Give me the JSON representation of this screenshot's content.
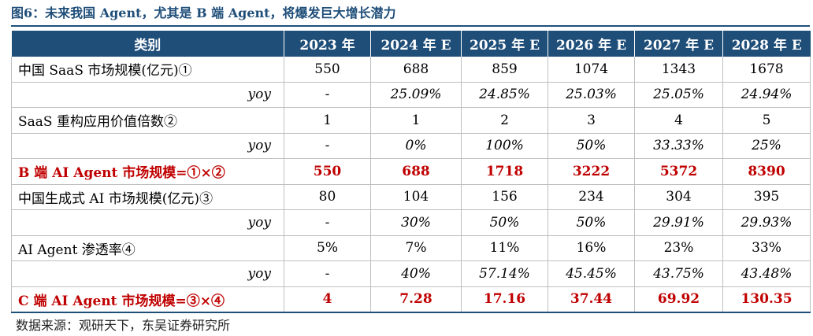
{
  "title": "图6：未来我国 Agent，尤其是 B 端 Agent，将爆发巨大增长潜力",
  "table": {
    "headers": [
      "类别",
      "2023 年",
      "2024 年 E",
      "2025 年 E",
      "2026 年 E",
      "2027 年 E",
      "2028 年 E"
    ],
    "rows": [
      {
        "label": "中国 SaaS 市场规模(亿元)①",
        "values": [
          "550",
          "688",
          "859",
          "1074",
          "1343",
          "1678"
        ]
      },
      {
        "label": "yoy",
        "values": [
          "-",
          "25.09%",
          "24.85%",
          "25.03%",
          "25.05%",
          "24.94%"
        ]
      },
      {
        "label": "SaaS 重构应用价值倍数②",
        "values": [
          "1",
          "1",
          "2",
          "3",
          "4",
          "5"
        ]
      },
      {
        "label": "yoy",
        "values": [
          "-",
          "0%",
          "100%",
          "50%",
          "33.33%",
          "25%"
        ]
      },
      {
        "label": "B 端 AI Agent 市场规模=①×②",
        "values": [
          "550",
          "688",
          "1718",
          "3222",
          "5372",
          "8390"
        ]
      },
      {
        "label": "中国生成式 AI 市场规模(亿元)③",
        "values": [
          "80",
          "104",
          "156",
          "234",
          "304",
          "395"
        ]
      },
      {
        "label": "yoy",
        "values": [
          "-",
          "30%",
          "50%",
          "50%",
          "29.91%",
          "29.93%"
        ]
      },
      {
        "label": "AI Agent 渗透率④",
        "values": [
          "5%",
          "7%",
          "11%",
          "16%",
          "23%",
          "33%"
        ]
      },
      {
        "label": "yoy",
        "values": [
          "-",
          "40%",
          "57.14%",
          "45.45%",
          "43.75%",
          "43.48%"
        ]
      },
      {
        "label": "C 端 AI Agent 市场规模=③×④",
        "values": [
          "4",
          "7.28",
          "17.16",
          "37.44",
          "69.92",
          "130.35"
        ]
      }
    ]
  },
  "colors": {
    "header_bg": "#1f4e79",
    "highlight_text": "#c00000"
  },
  "source": "数据来源：观研天下，东吴证券研究所"
}
